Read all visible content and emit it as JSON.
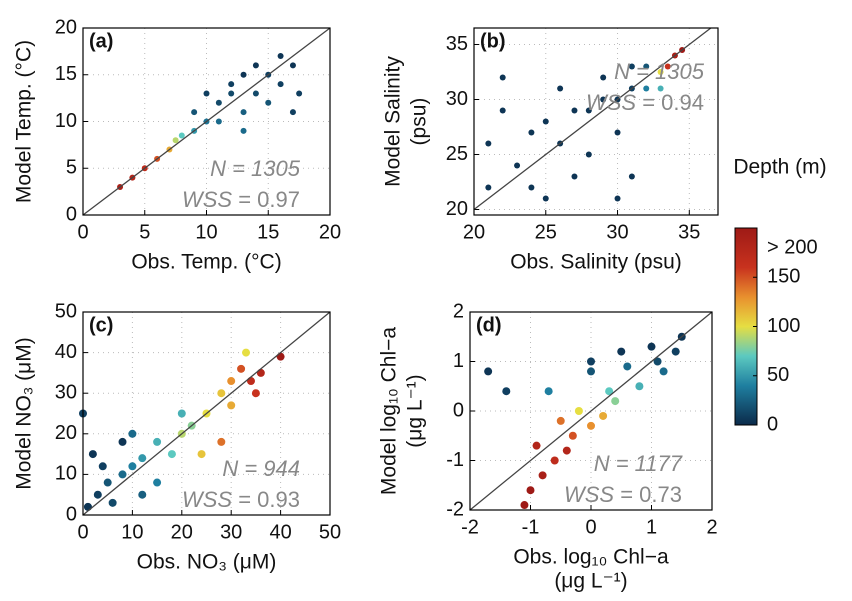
{
  "chart_data": [
    {
      "type": "scatter",
      "panel_label": "(a)",
      "xlabel": [
        "Obs. Temp. (°C)"
      ],
      "ylabel": [
        "Model Temp. (°C)"
      ],
      "xlim": [
        0,
        20
      ],
      "ylim": [
        0,
        20
      ],
      "xticks": [
        0,
        5,
        10,
        15,
        20
      ],
      "yticks": [
        0,
        5,
        10,
        15,
        20
      ],
      "grid": true,
      "n_label": "N = 1305",
      "wss_label": "WSS",
      "wss_value": "= 0.97",
      "x": [
        3,
        4,
        5,
        6,
        7,
        7.5,
        8,
        9,
        10,
        11,
        12,
        13,
        14,
        15,
        16,
        17,
        17.5,
        15,
        13,
        11,
        10,
        12,
        16,
        14,
        9,
        17,
        13
      ],
      "y": [
        3,
        4,
        5,
        6,
        7,
        8,
        8.5,
        11,
        13,
        12,
        14,
        15,
        16,
        15,
        14,
        16,
        13,
        12,
        11,
        10,
        10,
        13,
        17,
        13,
        9,
        11,
        9
      ],
      "depth": [
        190,
        180,
        170,
        150,
        120,
        90,
        70,
        20,
        10,
        15,
        10,
        5,
        5,
        10,
        10,
        5,
        10,
        20,
        25,
        30,
        35,
        15,
        5,
        15,
        50,
        10,
        30
      ]
    },
    {
      "type": "scatter",
      "panel_label": "(b)",
      "xlabel": [
        "Obs. Salinity (psu)"
      ],
      "ylabel": [
        "Model Salinity",
        "(psu)"
      ],
      "xlim": [
        20,
        37
      ],
      "ylim": [
        19.5,
        36.5
      ],
      "xticks": [
        20,
        25,
        30,
        35
      ],
      "yticks": [
        20,
        25,
        30,
        35
      ],
      "grid": true,
      "n_label": "N = 1305",
      "wss_label": "WSS",
      "wss_value": "= 0.94",
      "x": [
        34,
        33.5,
        34.5,
        33,
        32,
        31,
        30,
        29,
        28,
        27,
        25,
        24,
        22,
        21,
        23,
        26,
        28,
        30,
        31,
        27,
        24,
        21,
        29,
        31,
        26,
        22,
        30,
        25,
        33,
        32
      ],
      "y": [
        34,
        33,
        34.5,
        32.5,
        31,
        31,
        30,
        30,
        29,
        29,
        28,
        27,
        29,
        26,
        24,
        26,
        25,
        27,
        23,
        23,
        22,
        22,
        32,
        33,
        31,
        32,
        21,
        21,
        31,
        33
      ],
      "depth": [
        190,
        160,
        200,
        100,
        40,
        10,
        5,
        5,
        5,
        5,
        5,
        5,
        5,
        5,
        5,
        5,
        5,
        5,
        5,
        5,
        5,
        5,
        5,
        10,
        5,
        5,
        5,
        5,
        60,
        20
      ]
    },
    {
      "type": "scatter",
      "panel_label": "(c)",
      "xlabel": [
        "Obs. NO₃ (μM)"
      ],
      "ylabel": [
        "Model NO₃ (μM)"
      ],
      "xlim": [
        0,
        50
      ],
      "ylim": [
        0,
        50
      ],
      "xticks": [
        0,
        10,
        20,
        30,
        40,
        50
      ],
      "yticks": [
        0,
        10,
        20,
        30,
        40,
        50
      ],
      "grid": true,
      "n_label": "N = 944",
      "wss_label": "WSS",
      "wss_value": "= 0.93",
      "x": [
        40,
        36,
        34,
        35,
        32,
        30,
        28,
        25,
        22,
        20,
        18,
        15,
        12,
        10,
        8,
        5,
        3,
        2,
        1,
        4,
        6,
        12,
        15,
        24,
        28,
        30,
        20,
        10,
        0,
        8,
        33
      ],
      "y": [
        39,
        35,
        33,
        30,
        36,
        27,
        30,
        25,
        22,
        20,
        15,
        18,
        14,
        12,
        10,
        8,
        5,
        15,
        2,
        12,
        3,
        5,
        8,
        15,
        18,
        33,
        25,
        20,
        25,
        18,
        40
      ],
      "depth": [
        200,
        180,
        170,
        160,
        150,
        120,
        110,
        100,
        80,
        90,
        70,
        60,
        50,
        40,
        30,
        20,
        10,
        5,
        5,
        10,
        15,
        25,
        40,
        110,
        140,
        130,
        60,
        30,
        10,
        5,
        100
      ]
    },
    {
      "type": "scatter",
      "panel_label": "(d)",
      "xlabel": [
        "Obs. log₁₀ Chl−a",
        "(μg L⁻¹)"
      ],
      "ylabel": [
        "Model log₁₀ Chl−a",
        "(μg L⁻¹)"
      ],
      "xlim": [
        -2,
        2
      ],
      "ylim": [
        -2,
        2
      ],
      "xticks": [
        -2,
        -1,
        0,
        1,
        2
      ],
      "yticks": [
        -2,
        -1,
        0,
        1,
        2
      ],
      "grid": true,
      "n_label": "N = 1177",
      "wss_label": "WSS",
      "wss_value": "= 0.73",
      "x": [
        -1.7,
        -1.4,
        0,
        0.5,
        1,
        1.4,
        1.2,
        0.8,
        0.4,
        -0.2,
        0,
        0.3,
        -0.5,
        -0.3,
        -0.6,
        -0.8,
        -1,
        -0.4,
        0,
        -0.7,
        0.6,
        1.1,
        -1.1,
        0.2,
        -0.9,
        1.5
      ],
      "y": [
        0.8,
        0.4,
        1,
        1.2,
        1.3,
        1.2,
        0.8,
        0.5,
        0.2,
        0,
        0.8,
        0.4,
        -0.2,
        -0.5,
        -1,
        -1.3,
        -1.6,
        -0.8,
        -0.3,
        0.4,
        0.9,
        1,
        -1.9,
        -0.1,
        -0.7,
        1.5
      ],
      "depth": [
        5,
        10,
        10,
        5,
        5,
        10,
        30,
        60,
        80,
        100,
        20,
        70,
        140,
        150,
        170,
        190,
        200,
        180,
        130,
        40,
        30,
        15,
        200,
        120,
        180,
        5
      ]
    }
  ],
  "colorbar": {
    "title": "Depth (m)",
    "lim": [
      0,
      200
    ],
    "ticks": [
      0,
      50,
      100,
      150,
      {
        "value": 200,
        "label": "> 200"
      }
    ],
    "stops": [
      0,
      40,
      70,
      100,
      130,
      160,
      200
    ],
    "colors": [
      "#0b2a4a",
      "#1f7fa0",
      "#5cc9c0",
      "#e6de42",
      "#e8902e",
      "#c8321e",
      "#9e1a16"
    ]
  }
}
